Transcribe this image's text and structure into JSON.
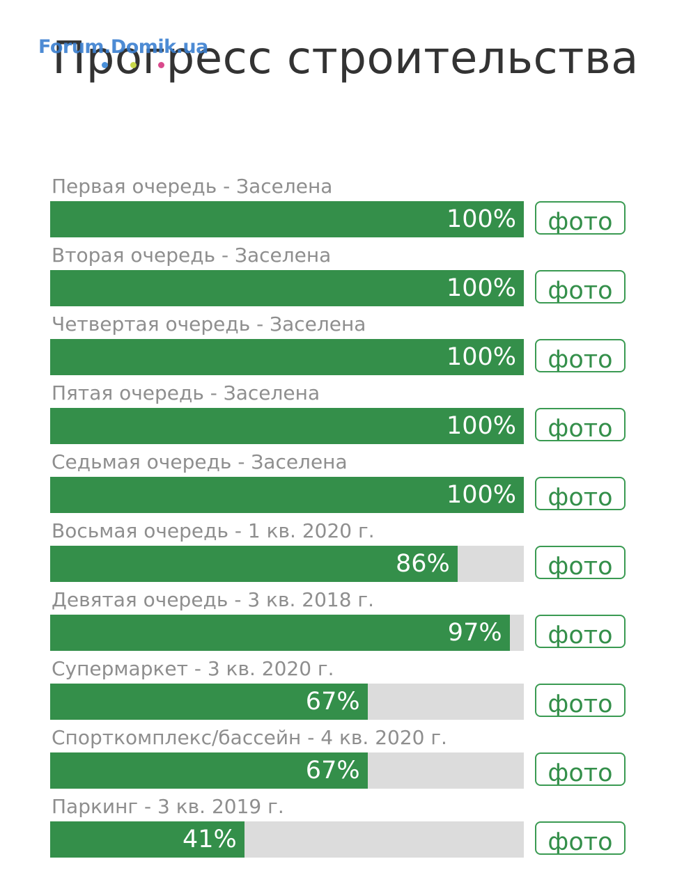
{
  "watermark": "Forum.Domik.ua",
  "title": "Прогресс строительства",
  "accent_color": "#348f4a",
  "track_color": "#dcdcdc",
  "items": [
    {
      "label": "Первая очередь - Заселена",
      "progress_text": "100%",
      "progress": 1.0,
      "button": "фото"
    },
    {
      "label": "Вторая очередь - Заселена",
      "progress_text": "100%",
      "progress": 1.0,
      "button": "фото"
    },
    {
      "label": "Четвертая очередь - Заселена",
      "progress_text": "100%",
      "progress": 1.0,
      "button": "фото"
    },
    {
      "label": "Пятая очередь - Заселена",
      "progress_text": "100%",
      "progress": 1.0,
      "button": "фото"
    },
    {
      "label": "Седьмая очередь - Заселена",
      "progress_text": "100%",
      "progress": 1.0,
      "button": "фото"
    },
    {
      "label": "Восьмая очередь - 1 кв. 2020 г.",
      "progress_text": "86%",
      "progress": 0.86,
      "button": "фото"
    },
    {
      "label": "Девятая очередь - 3 кв. 2018 г.",
      "progress_text": "97%",
      "progress": 0.97,
      "button": "фото"
    },
    {
      "label": "Супермаркет - 3 кв. 2020 г.",
      "progress_text": "67%",
      "progress": 0.67,
      "button": "фото"
    },
    {
      "label": "Спорткомплекс/бассейн - 4 кв. 2020 г.",
      "progress_text": "67%",
      "progress": 0.67,
      "button": "фото"
    },
    {
      "label": "Паркинг - 3 кв. 2019 г.",
      "progress_text": "41%",
      "progress": 0.41,
      "button": "фото"
    }
  ]
}
